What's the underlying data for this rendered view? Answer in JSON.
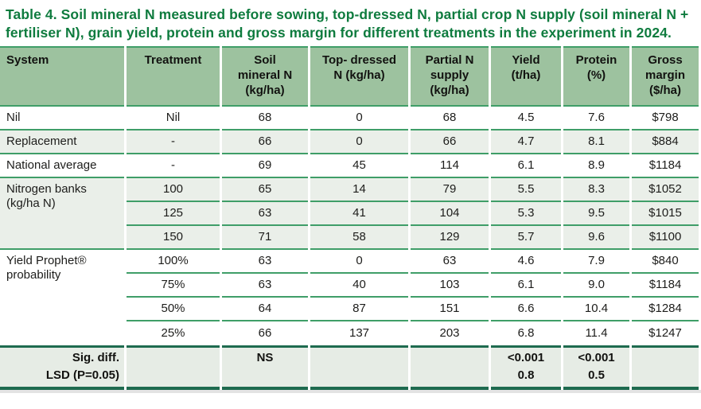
{
  "title": "Table 4. Soil mineral N measured before sowing, top-dressed N, partial crop N supply (soil mineral N + fertiliser N), grain yield, protein and gross margin for different treatments in the experiment in 2024.",
  "table": {
    "columns": [
      "System",
      "Treatment",
      "Soil\nmineral N\n(kg/ha)",
      "Top- dressed\nN (kg/ha)",
      "Partial N\nsupply\n(kg/ha)",
      "Yield\n(t/ha)",
      "Protein\n(%)",
      "Gross\nmargin\n($/ha)"
    ],
    "groups": [
      {
        "system": "Nil",
        "shaded": false,
        "rows": [
          [
            "Nil",
            "68",
            "0",
            "68",
            "4.5",
            "7.6",
            "$798"
          ]
        ]
      },
      {
        "system": "Replacement",
        "shaded": true,
        "rows": [
          [
            "-",
            "66",
            "0",
            "66",
            "4.7",
            "8.1",
            "$884"
          ]
        ]
      },
      {
        "system": "National average",
        "shaded": false,
        "rows": [
          [
            "-",
            "69",
            "45",
            "114",
            "6.1",
            "8.9",
            "$1184"
          ]
        ]
      },
      {
        "system": "Nitrogen banks (kg/ha N)",
        "shaded": true,
        "rows": [
          [
            "100",
            "65",
            "14",
            "79",
            "5.5",
            "8.3",
            "$1052"
          ],
          [
            "125",
            "63",
            "41",
            "104",
            "5.3",
            "9.5",
            "$1015"
          ],
          [
            "150",
            "71",
            "58",
            "129",
            "5.7",
            "9.6",
            "$1100"
          ]
        ]
      },
      {
        "system": "Yield Prophet® probability",
        "shaded": false,
        "rows": [
          [
            "100%",
            "63",
            "0",
            "63",
            "4.6",
            "7.9",
            "$840"
          ],
          [
            "75%",
            "63",
            "40",
            "103",
            "6.1",
            "9.0",
            "$1184"
          ],
          [
            "50%",
            "64",
            "87",
            "151",
            "6.6",
            "10.4",
            "$1284"
          ],
          [
            "25%",
            "66",
            "137",
            "203",
            "6.8",
            "11.4",
            "$1247"
          ]
        ]
      }
    ],
    "footer": {
      "label_line1": "Sig. diff.",
      "label_line2": "LSD (P=0.05)",
      "soil_mineral_n": "NS",
      "yield_sig": "<0.001",
      "yield_lsd": "0.8",
      "protein_sig": "<0.001",
      "protein_lsd": "0.5"
    },
    "colors": {
      "title_green": "#0e7b3e",
      "header_bg": "#9dc29f",
      "row_line_green": "#3f9e68",
      "shaded_row_bg": "#eaefe9",
      "footer_bg": "#e6ece5",
      "dark_rule": "#1e6b4f",
      "text": "#1d1d1b"
    }
  }
}
